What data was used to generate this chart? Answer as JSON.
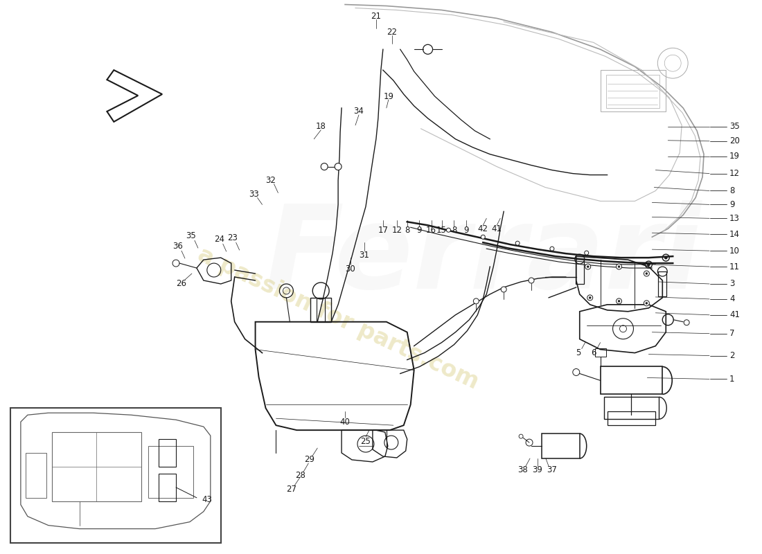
{
  "bg": "#ffffff",
  "lc": "#1a1a1a",
  "wm_color": "#c8b84a",
  "wm_alpha": 0.3,
  "fs": 8.5,
  "lw_main": 1.0,
  "lw_thin": 0.6,
  "right_labels": [
    [
      1057,
      618,
      "35"
    ],
    [
      1057,
      597,
      "20"
    ],
    [
      1057,
      575,
      "19"
    ],
    [
      1057,
      550,
      "12"
    ],
    [
      1057,
      525,
      "8"
    ],
    [
      1057,
      505,
      "9"
    ],
    [
      1057,
      485,
      "13"
    ],
    [
      1057,
      462,
      "14"
    ],
    [
      1057,
      438,
      "10"
    ],
    [
      1057,
      415,
      "11"
    ],
    [
      1057,
      390,
      "3"
    ],
    [
      1057,
      368,
      "4"
    ],
    [
      1057,
      345,
      "41"
    ],
    [
      1057,
      318,
      "7"
    ],
    [
      1057,
      286,
      "2"
    ],
    [
      1057,
      252,
      "1"
    ]
  ]
}
